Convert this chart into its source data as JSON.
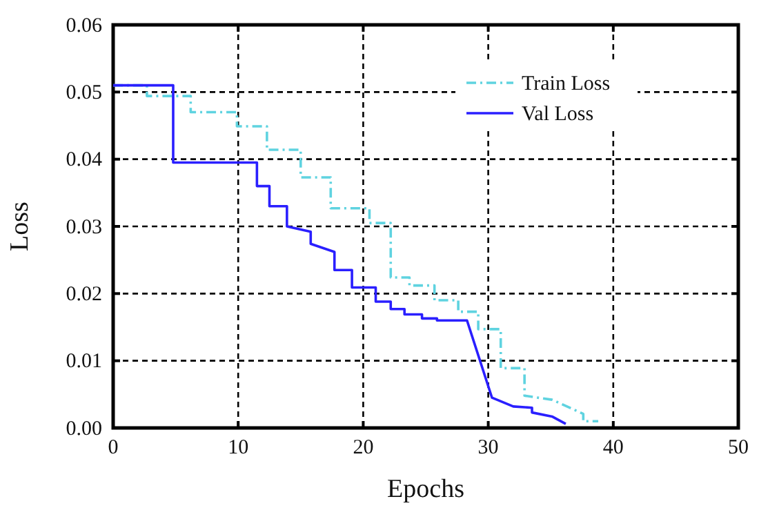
{
  "chart_data": {
    "type": "line",
    "xlabel": "Epochs",
    "ylabel": "Loss",
    "xlim": [
      0,
      50
    ],
    "xticks": [
      0,
      10,
      20,
      30,
      40,
      50
    ],
    "ylim": [
      0,
      0.06
    ],
    "yticks": [
      {
        "value": 0,
        "label": "0.00"
      },
      {
        "value": 0.01,
        "label": "0.01"
      },
      {
        "value": 0.02,
        "label": "0.02"
      },
      {
        "value": 0.03,
        "label": "0.03"
      },
      {
        "value": 0.04,
        "label": "0.04"
      },
      {
        "value": 0.05,
        "label": "0.05"
      },
      {
        "value": 0.06,
        "label": "0.06"
      }
    ],
    "grid": true,
    "legend": "top right",
    "marker": "none",
    "series": [
      {
        "name": "Train Loss",
        "color": "#5fd3e0",
        "line_style": "dashed",
        "x": [
          0,
          2.7,
          2.7,
          6.2,
          6.2,
          9.9,
          9.9,
          12.3,
          12.3,
          15,
          15,
          17.4,
          17.4,
          20.5,
          20.5,
          22.2,
          22.2,
          23.7,
          23.7,
          25.7,
          25.7,
          27.6,
          27.6,
          29.2,
          29.2,
          31.0,
          31.0,
          32.9,
          32.9,
          35.1,
          37.6,
          37.6,
          38.8
        ],
        "values": [
          0.051,
          0.051,
          0.0494,
          0.0494,
          0.047,
          0.047,
          0.0449,
          0.0449,
          0.0414,
          0.0414,
          0.0373,
          0.0373,
          0.0327,
          0.0327,
          0.0305,
          0.0305,
          0.0224,
          0.0224,
          0.0212,
          0.0212,
          0.019,
          0.019,
          0.0173,
          0.0173,
          0.0147,
          0.0147,
          0.0089,
          0.0089,
          0.0048,
          0.0042,
          0.0021,
          0.001,
          0.001
        ]
      },
      {
        "name": "Val Loss",
        "color": "#2a1fff",
        "line_style": "solid",
        "x": [
          0,
          4.8,
          4.8,
          11.5,
          11.5,
          12.5,
          12.5,
          13.9,
          13.9,
          15.8,
          15.8,
          17.7,
          17.7,
          19.1,
          19.1,
          21.0,
          21.0,
          22.2,
          22.2,
          23.3,
          23.3,
          24.7,
          24.7,
          25.9,
          25.9,
          28.3,
          30.3,
          32.0,
          33.5,
          33.5,
          35.1,
          36.2
        ],
        "values": [
          0.051,
          0.051,
          0.0395,
          0.0395,
          0.036,
          0.036,
          0.033,
          0.033,
          0.03,
          0.0292,
          0.0274,
          0.0262,
          0.0235,
          0.0235,
          0.0209,
          0.0209,
          0.0188,
          0.0188,
          0.0177,
          0.0177,
          0.0169,
          0.0169,
          0.0163,
          0.0163,
          0.016,
          0.016,
          0.0045,
          0.0032,
          0.003,
          0.0023,
          0.0017,
          0.0006
        ]
      }
    ]
  }
}
